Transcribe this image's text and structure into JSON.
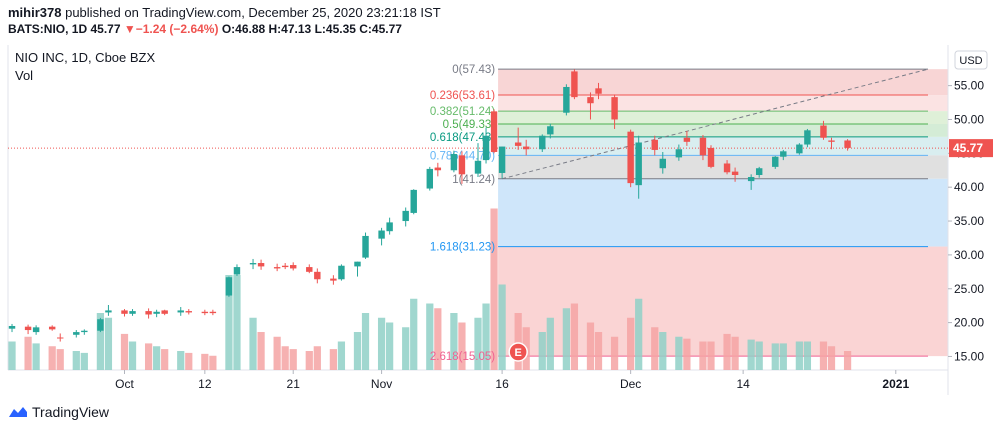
{
  "header": {
    "user": "mihir378",
    "published": " published on TradingView.com, December 25, 2020 23:21:18 IST",
    "ohlc_symbol": "BATS:NIO, 1D",
    "last": "45.77",
    "change": "−1.24 (−2.64%)",
    "o": "O:46.88",
    "h": "H:47.13",
    "l": "L:45.35",
    "c": "C:45.77"
  },
  "footer": {
    "brand": "TradingView"
  },
  "colors": {
    "up": "#26a69a",
    "down": "#ef5350",
    "vol_up": "#8fd0c7",
    "vol_down": "#f5a3a3",
    "fib_0_236": "#f8d5d5",
    "fib_236_382": "#fbe3e3",
    "fib_382_5": "#dff0d8",
    "fib_5_618": "#d4ecd6",
    "fib_618_786": "#d9eef0",
    "fib_786_1": "#e0e0e0",
    "fib_1_1618": "#cfe6fa",
    "fib_1618_2618": "#fad4d4"
  },
  "chart_data": {
    "type": "candlestick",
    "title": "NIO INC, 1D, Cboe BZX",
    "volume_label": "Vol",
    "currency": "USD",
    "last_price": 45.77,
    "last_price_label": "45.77",
    "ylim": [
      13,
      61
    ],
    "y_ticks": [
      15,
      20,
      25,
      30,
      35,
      40,
      45,
      50,
      55
    ],
    "y_tick_labels": [
      "15.00",
      "20.00",
      "25.00",
      "30.00",
      "35.00",
      "40.00",
      "45.00",
      "50.00",
      "55.00"
    ],
    "x_ticks": [
      {
        "index": 14,
        "label": "Oct"
      },
      {
        "index": 24,
        "label": "12"
      },
      {
        "index": 35,
        "label": "21"
      },
      {
        "index": 46,
        "label": "Nov"
      },
      {
        "index": 61,
        "label": "16"
      },
      {
        "index": 77,
        "label": "Dec"
      },
      {
        "index": 91,
        "label": "14"
      },
      {
        "index": 110,
        "label": "2021"
      }
    ],
    "total_slots": 117,
    "candles": [
      {
        "i": 0,
        "o": 19.1,
        "h": 19.8,
        "l": 18.6,
        "c": 19.5,
        "v": 0.3
      },
      {
        "i": 2,
        "o": 19.4,
        "h": 19.7,
        "l": 18.3,
        "c": 18.9,
        "v": 0.35
      },
      {
        "i": 3,
        "o": 18.6,
        "h": 19.6,
        "l": 18.2,
        "c": 19.3,
        "v": 0.28
      },
      {
        "i": 5,
        "o": 19.4,
        "h": 19.6,
        "l": 18.8,
        "c": 19.0,
        "v": 0.25
      },
      {
        "i": 6,
        "o": 17.8,
        "h": 18.4,
        "l": 17.2,
        "c": 17.7,
        "v": 0.22
      },
      {
        "i": 8,
        "o": 18.2,
        "h": 18.9,
        "l": 17.8,
        "c": 18.6,
        "v": 0.2
      },
      {
        "i": 9,
        "o": 18.6,
        "h": 19.0,
        "l": 18.2,
        "c": 18.8,
        "v": 0.18
      },
      {
        "i": 11,
        "o": 18.8,
        "h": 20.7,
        "l": 18.6,
        "c": 20.5,
        "v": 0.6
      },
      {
        "i": 12,
        "o": 21.5,
        "h": 22.6,
        "l": 21.0,
        "c": 21.8,
        "v": 0.55
      },
      {
        "i": 14,
        "o": 21.8,
        "h": 22.0,
        "l": 20.9,
        "c": 21.3,
        "v": 0.38
      },
      {
        "i": 15,
        "o": 21.3,
        "h": 22.0,
        "l": 21.0,
        "c": 21.7,
        "v": 0.3
      },
      {
        "i": 17,
        "o": 21.7,
        "h": 22.1,
        "l": 20.6,
        "c": 21.2,
        "v": 0.28
      },
      {
        "i": 18,
        "o": 21.3,
        "h": 21.9,
        "l": 20.8,
        "c": 21.6,
        "v": 0.25
      },
      {
        "i": 19,
        "o": 21.8,
        "h": 21.9,
        "l": 21.1,
        "c": 21.3,
        "v": 0.22
      },
      {
        "i": 21,
        "o": 21.5,
        "h": 22.3,
        "l": 21.0,
        "c": 21.8,
        "v": 0.2
      },
      {
        "i": 22,
        "o": 21.7,
        "h": 22.0,
        "l": 21.2,
        "c": 21.5,
        "v": 0.18
      },
      {
        "i": 24,
        "o": 21.6,
        "h": 21.9,
        "l": 21.1,
        "c": 21.4,
        "v": 0.17
      },
      {
        "i": 25,
        "o": 21.6,
        "h": 21.9,
        "l": 21.1,
        "c": 21.4,
        "v": 0.15
      },
      {
        "i": 27,
        "o": 24.0,
        "h": 26.8,
        "l": 23.8,
        "c": 26.7,
        "v": 1.0
      },
      {
        "i": 28,
        "o": 27.1,
        "h": 28.6,
        "l": 26.9,
        "c": 28.2,
        "v": 1.0
      },
      {
        "i": 30,
        "o": 28.6,
        "h": 29.4,
        "l": 27.9,
        "c": 28.8,
        "v": 0.55
      },
      {
        "i": 31,
        "o": 28.8,
        "h": 29.3,
        "l": 27.8,
        "c": 28.3,
        "v": 0.4
      },
      {
        "i": 33,
        "o": 28.2,
        "h": 28.7,
        "l": 27.6,
        "c": 28.0,
        "v": 0.35
      },
      {
        "i": 34,
        "o": 28.4,
        "h": 28.8,
        "l": 27.9,
        "c": 28.2,
        "v": 0.25
      },
      {
        "i": 35,
        "o": 28.5,
        "h": 28.9,
        "l": 27.7,
        "c": 28.0,
        "v": 0.22
      },
      {
        "i": 37,
        "o": 28.2,
        "h": 28.6,
        "l": 27.3,
        "c": 27.5,
        "v": 0.2
      },
      {
        "i": 38,
        "o": 27.5,
        "h": 28.0,
        "l": 25.8,
        "c": 26.4,
        "v": 0.25
      },
      {
        "i": 40,
        "o": 26.5,
        "h": 27.0,
        "l": 25.6,
        "c": 26.2,
        "v": 0.22
      },
      {
        "i": 41,
        "o": 26.4,
        "h": 28.6,
        "l": 26.2,
        "c": 28.4,
        "v": 0.3
      },
      {
        "i": 43,
        "o": 28.3,
        "h": 29.0,
        "l": 26.8,
        "c": 29.0,
        "v": 0.4
      },
      {
        "i": 44,
        "o": 29.6,
        "h": 33.3,
        "l": 29.4,
        "c": 32.8,
        "v": 0.6
      },
      {
        "i": 46,
        "o": 32.4,
        "h": 34.0,
        "l": 31.4,
        "c": 33.6,
        "v": 0.55
      },
      {
        "i": 47,
        "o": 33.5,
        "h": 35.5,
        "l": 33.0,
        "c": 34.8,
        "v": 0.5
      },
      {
        "i": 49,
        "o": 35.0,
        "h": 37.0,
        "l": 34.2,
        "c": 36.5,
        "v": 0.45
      },
      {
        "i": 50,
        "o": 36.2,
        "h": 39.7,
        "l": 36.0,
        "c": 39.6,
        "v": 0.75
      },
      {
        "i": 52,
        "o": 39.8,
        "h": 43.0,
        "l": 39.5,
        "c": 42.7,
        "v": 0.7
      },
      {
        "i": 53,
        "o": 42.9,
        "h": 43.6,
        "l": 41.6,
        "c": 42.5,
        "v": 0.65
      },
      {
        "i": 55,
        "o": 42.5,
        "h": 45.4,
        "l": 42.2,
        "c": 44.9,
        "v": 0.6
      },
      {
        "i": 56,
        "o": 44.7,
        "h": 45.3,
        "l": 40.5,
        "c": 41.9,
        "v": 0.5
      },
      {
        "i": 58,
        "o": 42.0,
        "h": 46.5,
        "l": 41.5,
        "c": 43.9,
        "v": 0.55
      },
      {
        "i": 59,
        "o": 44.0,
        "h": 48.8,
        "l": 43.5,
        "c": 47.6,
        "v": 0.7
      },
      {
        "i": 60,
        "o": 51.2,
        "h": 51.5,
        "l": 45.0,
        "c": 45.2,
        "v": 1.7
      },
      {
        "i": 61,
        "o": 42.1,
        "h": 46.0,
        "l": 41.3,
        "c": 46.0,
        "v": 0.9
      },
      {
        "i": 63,
        "o": 46.6,
        "h": 48.8,
        "l": 45.5,
        "c": 46.1,
        "v": 0.6
      },
      {
        "i": 64,
        "o": 46.0,
        "h": 47.0,
        "l": 44.7,
        "c": 45.6,
        "v": 0.45
      },
      {
        "i": 66,
        "o": 45.6,
        "h": 47.8,
        "l": 45.2,
        "c": 47.6,
        "v": 0.4
      },
      {
        "i": 67,
        "o": 47.8,
        "h": 49.4,
        "l": 47.2,
        "c": 49.0,
        "v": 0.55
      },
      {
        "i": 69,
        "o": 51.0,
        "h": 55.2,
        "l": 50.6,
        "c": 54.8,
        "v": 0.65
      },
      {
        "i": 70,
        "o": 57.1,
        "h": 57.4,
        "l": 53.0,
        "c": 53.3,
        "v": 0.7
      },
      {
        "i": 72,
        "o": 53.3,
        "h": 54.0,
        "l": 50.0,
        "c": 52.4,
        "v": 0.5
      },
      {
        "i": 73,
        "o": 54.6,
        "h": 55.4,
        "l": 53.0,
        "c": 53.8,
        "v": 0.4
      },
      {
        "i": 75,
        "o": 53.3,
        "h": 53.7,
        "l": 48.6,
        "c": 50.0,
        "v": 0.35
      },
      {
        "i": 77,
        "o": 48.2,
        "h": 48.5,
        "l": 40.0,
        "c": 40.6,
        "v": 0.55
      },
      {
        "i": 78,
        "o": 40.3,
        "h": 47.6,
        "l": 38.3,
        "c": 46.6,
        "v": 0.75
      },
      {
        "i": 80,
        "o": 47.0,
        "h": 47.6,
        "l": 44.7,
        "c": 45.5,
        "v": 0.45
      },
      {
        "i": 81,
        "o": 42.8,
        "h": 45.2,
        "l": 42.0,
        "c": 44.2,
        "v": 0.4
      },
      {
        "i": 83,
        "o": 44.4,
        "h": 46.3,
        "l": 43.9,
        "c": 45.6,
        "v": 0.35
      },
      {
        "i": 84,
        "o": 47.3,
        "h": 48.3,
        "l": 46.1,
        "c": 46.7,
        "v": 0.33
      },
      {
        "i": 86,
        "o": 47.3,
        "h": 47.7,
        "l": 44.0,
        "c": 44.7,
        "v": 0.3
      },
      {
        "i": 87,
        "o": 45.8,
        "h": 46.2,
        "l": 42.8,
        "c": 43.0,
        "v": 0.3
      },
      {
        "i": 89,
        "o": 43.5,
        "h": 44.0,
        "l": 41.9,
        "c": 42.2,
        "v": 0.38
      },
      {
        "i": 90,
        "o": 42.3,
        "h": 42.9,
        "l": 40.8,
        "c": 41.8,
        "v": 0.35
      },
      {
        "i": 92,
        "o": 40.9,
        "h": 41.9,
        "l": 39.6,
        "c": 41.5,
        "v": 0.32
      },
      {
        "i": 93,
        "o": 41.8,
        "h": 43.0,
        "l": 41.4,
        "c": 42.8,
        "v": 0.3
      },
      {
        "i": 95,
        "o": 43.0,
        "h": 44.6,
        "l": 42.7,
        "c": 44.5,
        "v": 0.28
      },
      {
        "i": 96,
        "o": 44.5,
        "h": 45.5,
        "l": 44.0,
        "c": 45.3,
        "v": 0.28
      },
      {
        "i": 98,
        "o": 45.0,
        "h": 46.5,
        "l": 44.8,
        "c": 46.3,
        "v": 0.3
      },
      {
        "i": 99,
        "o": 46.3,
        "h": 48.6,
        "l": 45.9,
        "c": 48.4,
        "v": 0.3
      },
      {
        "i": 101,
        "o": 49.1,
        "h": 49.8,
        "l": 47.0,
        "c": 47.3,
        "v": 0.3
      },
      {
        "i": 102,
        "o": 46.9,
        "h": 47.3,
        "l": 45.6,
        "c": 46.7,
        "v": 0.25
      },
      {
        "i": 104,
        "o": 46.9,
        "h": 47.1,
        "l": 45.4,
        "c": 45.8,
        "v": 0.2
      }
    ],
    "fibonacci": {
      "start_index": 61,
      "end_index": 119,
      "trend_from": {
        "index": 61,
        "price": 41.24
      },
      "trend_to": {
        "index": 119,
        "price": 57.43
      },
      "levels": [
        {
          "ratio": 0,
          "price": 57.43,
          "label": "0(57.43)",
          "color": "#787b86"
        },
        {
          "ratio": 0.236,
          "price": 53.61,
          "label": "0.236(53.61)",
          "color": "#ef5350"
        },
        {
          "ratio": 0.382,
          "price": 51.24,
          "label": "0.382(51.24)",
          "color": "#66bb6a"
        },
        {
          "ratio": 0.5,
          "price": 49.33,
          "label": "0.5(49.33)",
          "color": "#4caf50"
        },
        {
          "ratio": 0.618,
          "price": 47.43,
          "label": "0.618(47.43)",
          "color": "#089981"
        },
        {
          "ratio": 0.786,
          "price": 44.7,
          "label": "0.786(44.70)",
          "color": "#64b5f6"
        },
        {
          "ratio": 1,
          "price": 41.24,
          "label": "1(41.24)",
          "color": "#787b86"
        },
        {
          "ratio": 1.618,
          "price": 31.23,
          "label": "1.618(31.23)",
          "color": "#2196f3"
        },
        {
          "ratio": 2.618,
          "price": 15.05,
          "label": "2.618(15.05)",
          "color": "#f06292"
        }
      ]
    },
    "earnings_marker": {
      "index": 63,
      "label": "E"
    }
  }
}
